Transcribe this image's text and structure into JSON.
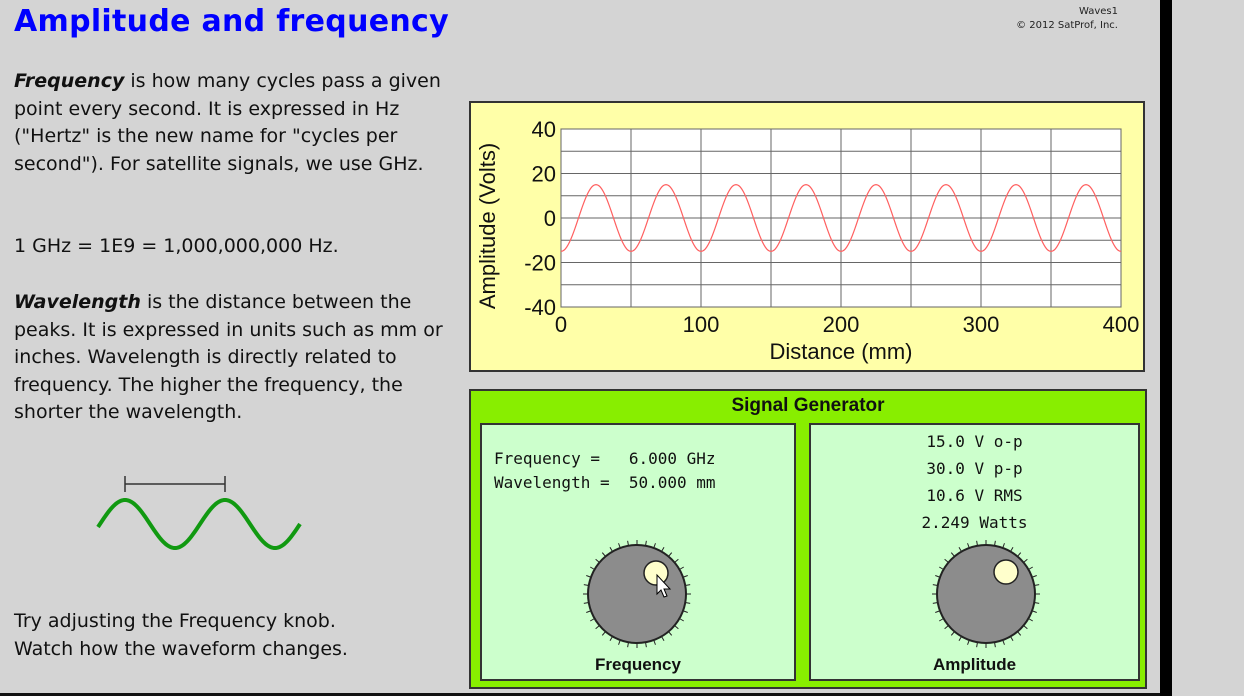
{
  "header": {
    "title": "Amplitude and frequency",
    "credit_line1": "Waves1",
    "credit_line2": "© 2012 SatProf, Inc."
  },
  "text": {
    "freq_term": "Frequency",
    "freq_rest": " is how many cycles pass a given point every second. It is expressed in Hz (\"Hertz\" is the new name for \"cycles per second\").  For satellite signals, we use GHz.",
    "ghz_line": "1 GHz = 1E9 = 1,000,000,000 Hz.",
    "wave_term": "Wavelength",
    "wave_rest": " is the distance between the peaks.  It is expressed in units such as mm or inches.  Wavelength is directly related to frequency. The higher the frequency, the shorter the wavelength.",
    "instruction_1": "Try adjusting the Frequency knob.",
    "instruction_2": "Watch how the waveform changes."
  },
  "chart_data": {
    "type": "line",
    "xlabel": "Distance (mm)",
    "ylabel": "Amplitude (Volts)",
    "xlim": [
      0,
      400
    ],
    "ylim": [
      -40,
      40
    ],
    "x_ticks": [
      "0",
      "100",
      "200",
      "300",
      "400"
    ],
    "y_ticks": [
      "40",
      "20",
      "0",
      "-20",
      "-40"
    ],
    "grid": true,
    "series": [
      {
        "amplitude": 15,
        "wavelength": 50,
        "color": "#ff6060"
      }
    ]
  },
  "generator": {
    "title": "Signal Generator",
    "freq_line": "Frequency =   6.000 GHz",
    "wave_line": "Wavelength =  50.000 mm",
    "amp_op": "15.0 V o-p",
    "amp_pp": "30.0 V p-p",
    "amp_rms": "10.6 V RMS",
    "amp_watts": "2.249 Watts",
    "freq_knob_label": "Frequency",
    "amp_knob_label": "Amplitude"
  },
  "colors": {
    "title": "#0000ff",
    "chart_bg": "#ffffa8",
    "generator_bg": "#88ee00",
    "subpanel_bg": "#ccffcc",
    "knob": "#8c8c8c",
    "knob_marker": "#ffffcc",
    "diagram_wave": "#119911"
  }
}
